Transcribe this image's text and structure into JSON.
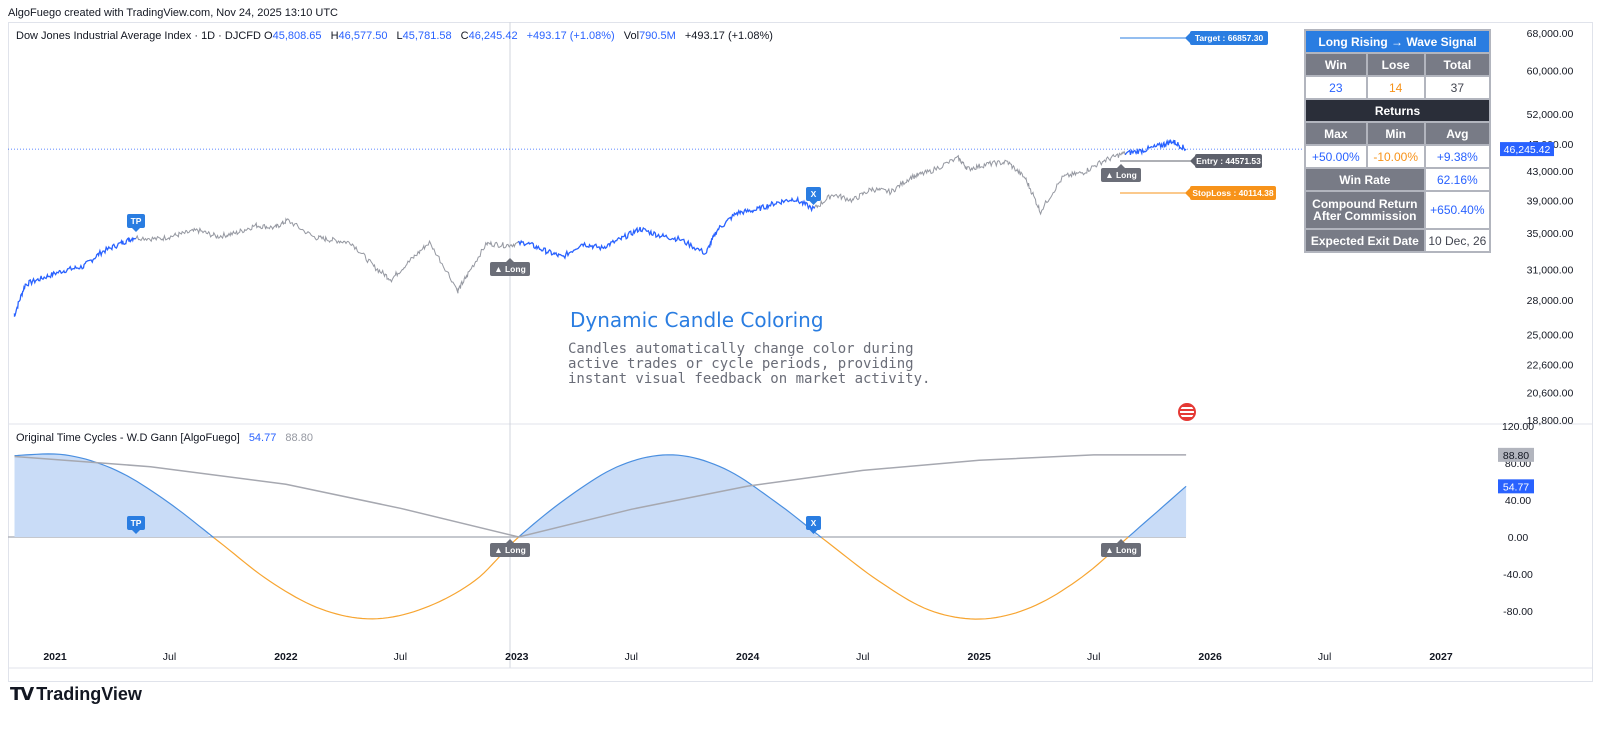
{
  "header": {
    "creator": "AlgoFuego created with TradingView.com, Nov 24, 2025 13:10 UTC"
  },
  "legend": {
    "symbol": "Dow Jones Industrial Average Index · 1D · DJCFD",
    "open_label": "O",
    "open": "45,808.65",
    "high_label": "H",
    "high": "46,577.50",
    "low_label": "L",
    "low": "45,781.58",
    "close_label": "C",
    "close": "46,245.42",
    "change": "+493.17 (+1.08%)",
    "vol_label": "Vol",
    "vol": "790.5M",
    "change2": "+493.17 (+1.08%)"
  },
  "oscillator_legend": {
    "name": "Original Time Cycles - W.D Gann [AlgoFuego]",
    "value1": "54.77",
    "value2": "88.80"
  },
  "stats_table": {
    "title": "Long Rising → Wave Signal",
    "win_label": "Win",
    "lose_label": "Lose",
    "total_label": "Total",
    "win": "23",
    "lose": "14",
    "total": "37",
    "returns_label": "Returns",
    "max_label": "Max",
    "min_label": "Min",
    "avg_label": "Avg",
    "max": "+50.00%",
    "min": "-10.00%",
    "avg": "+9.38%",
    "winrate_label": "Win Rate",
    "winrate": "62.16%",
    "compound_label_1": "Compound Return",
    "compound_label_2": "After Commission",
    "compound": "+650.40%",
    "exit_label": "Expected Exit Date",
    "exit": "10 Dec, 26"
  },
  "annotation": {
    "title": "Dynamic Candle Coloring",
    "body": "Candles automatically change color during active trades or cycle periods, providing instant visual feedback on market activity."
  },
  "labels": {
    "target": "Target : 66857.30",
    "entry": "Entry : 44571.53",
    "stoploss": "StopLoss : 40114.38",
    "tp": "TP",
    "x": "X",
    "long": "▲ Long"
  },
  "footer": {
    "brand": "TradingView"
  },
  "colors": {
    "active_blue": "#2962ff",
    "inactive_gray": "#9598a1",
    "fill_blue": "#c9dcf7",
    "negative_orange": "#f7a531",
    "long_cycle_gray": "#a6a8b0",
    "label_blue": "#2a7de1",
    "label_orange": "#f7931a",
    "label_dark": "#5d606b"
  },
  "chart_data": [
    {
      "type": "line",
      "title": "Dow Jones Industrial Average Index · 1D · DJCFD",
      "scale": "log",
      "ylim": [
        18800,
        68000
      ],
      "y_ticks": [
        "68,000.00",
        "60,000.00",
        "52,000.00",
        "47,000.00",
        "43,000.00",
        "39,000.00",
        "35,000.00",
        "31,000.00",
        "28,000.00",
        "25,000.00",
        "22,600.00",
        "20,600.00",
        "18,800.00"
      ],
      "x_ticks": [
        "2021",
        "Jul",
        "2022",
        "Jul",
        "2023",
        "Jul",
        "2024",
        "Jul",
        "2025",
        "Jul",
        "2026",
        "Jul",
        "2027"
      ],
      "last_price": "46,245.42",
      "x": [
        "2020-10-29",
        "2020-11-15",
        "2020-12-15",
        "2021-01-15",
        "2021-02-15",
        "2021-03-15",
        "2021-04-15",
        "2021-05-07",
        "2021-06-15",
        "2021-07-15",
        "2021-08-15",
        "2021-09-15",
        "2021-10-15",
        "2021-11-15",
        "2021-12-15",
        "2022-01-04",
        "2022-02-15",
        "2022-03-15",
        "2022-04-15",
        "2022-05-20",
        "2022-06-17",
        "2022-07-15",
        "2022-08-16",
        "2022-09-30",
        "2022-10-15",
        "2022-11-15",
        "2022-12-15",
        "2023-01-15",
        "2023-02-15",
        "2023-03-15",
        "2023-04-15",
        "2023-05-15",
        "2023-06-15",
        "2023-07-15",
        "2023-08-15",
        "2023-09-15",
        "2023-10-27",
        "2023-11-15",
        "2023-12-15",
        "2024-01-15",
        "2024-02-15",
        "2024-03-15",
        "2024-04-15",
        "2024-05-15",
        "2024-06-15",
        "2024-07-15",
        "2024-08-15",
        "2024-09-15",
        "2024-10-15",
        "2024-11-29",
        "2024-12-15",
        "2025-01-15",
        "2025-02-15",
        "2025-03-15",
        "2025-04-08",
        "2025-05-15",
        "2025-06-15",
        "2025-07-15",
        "2025-08-15",
        "2025-09-15",
        "2025-10-15",
        "2025-11-03",
        "2025-11-24"
      ],
      "values": [
        26500,
        29500,
        30200,
        30900,
        31300,
        32800,
        33800,
        34500,
        34300,
        34800,
        35300,
        34600,
        35000,
        35900,
        35600,
        36500,
        34500,
        34200,
        33900,
        31300,
        30000,
        31800,
        33900,
        28900,
        30400,
        33800,
        33600,
        33900,
        33000,
        32300,
        33800,
        33300,
        34300,
        35500,
        34700,
        34300,
        32700,
        35400,
        37400,
        37800,
        38700,
        39200,
        37900,
        39800,
        39000,
        40500,
        40100,
        42100,
        42900,
        44900,
        43300,
        44000,
        44300,
        42000,
        37600,
        42200,
        42800,
        44400,
        45500,
        46000,
        46800,
        47500,
        46245
      ],
      "series_colors": "blue = active trade/cycle period, gray = inactive"
    },
    {
      "type": "line",
      "title": "Original Time Cycles - W.D Gann [AlgoFuego]",
      "ylim": [
        -100,
        120
      ],
      "y_ticks": [
        "120.00",
        "80.00",
        "40.00",
        "0.00",
        "-40.00",
        "-80.00"
      ],
      "series": [
        {
          "name": "54.77",
          "description": "Short time cycle (sine wave)",
          "x": [
            "2020-10-29",
            "2021-01-17",
            "2021-04-08",
            "2021-06-28",
            "2021-09-17",
            "2021-12-07",
            "2022-02-26",
            "2022-05-18",
            "2022-08-07",
            "2022-10-27",
            "2023-01-04",
            "2023-03-27",
            "2023-06-16",
            "2023-09-05",
            "2023-11-25",
            "2024-02-14",
            "2024-05-05",
            "2024-07-25",
            "2024-10-14",
            "2025-01-03",
            "2025-03-24",
            "2025-06-13",
            "2025-09-02",
            "2025-11-24"
          ],
          "values": [
            88.0,
            88.8,
            72.0,
            38.0,
            -5.0,
            -48.0,
            -78.0,
            -88.5,
            -77.0,
            -47.0,
            0.0,
            45.0,
            78.0,
            88.8,
            74.0,
            38.0,
            -5.0,
            -47.0,
            -79.0,
            -88.7,
            -76.0,
            -43.0,
            5.0,
            54.77
          ]
        },
        {
          "name": "88.80",
          "description": "Long time cycle",
          "x": [
            "2020-10-29",
            "2021-06-01",
            "2022-01-01",
            "2022-07-01",
            "2023-01-04",
            "2023-07-01",
            "2024-01-01",
            "2024-07-01",
            "2025-01-01",
            "2025-07-01",
            "2025-11-24"
          ],
          "values": [
            87.0,
            76.0,
            57.0,
            31.0,
            0.0,
            30.0,
            55.0,
            72.0,
            83.0,
            88.8,
            88.8
          ]
        }
      ]
    }
  ]
}
